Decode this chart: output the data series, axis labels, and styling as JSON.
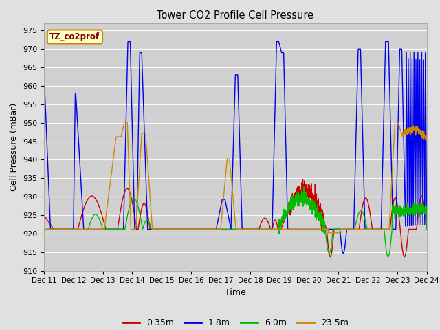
{
  "title": "Tower CO2 Profile Cell Pressure",
  "xlabel": "Time",
  "ylabel": "Cell Pressure (mBar)",
  "ylim": [
    910,
    977
  ],
  "yticks": [
    910,
    915,
    920,
    925,
    930,
    935,
    940,
    945,
    950,
    955,
    960,
    965,
    970,
    975
  ],
  "background_color": "#e0e0e0",
  "plot_bg_color": "#d0d0d0",
  "legend_label": "TZ_co2prof",
  "series_labels": [
    "0.35m",
    "1.8m",
    "6.0m",
    "23.5m"
  ],
  "series_colors": [
    "#cc0000",
    "#0000ee",
    "#00bb00",
    "#cc8800"
  ],
  "line_width": 1.0,
  "annotation_box_color": "#ffffcc",
  "annotation_box_edge": "#cc8800",
  "x_start": 0,
  "x_end": 13,
  "x_tick_labels": [
    "Dec 11",
    "Dec 12",
    "Dec 13",
    "Dec 14",
    "Dec 15",
    "Dec 16",
    "Dec 17",
    "Dec 18",
    "Dec 19",
    "Dec 20",
    "Dec 21",
    "Dec 22",
    "Dec 23",
    "Dec 24"
  ],
  "x_tick_positions": [
    0,
    1,
    2,
    3,
    4,
    5,
    6,
    7,
    8,
    9,
    10,
    11,
    12,
    13
  ]
}
